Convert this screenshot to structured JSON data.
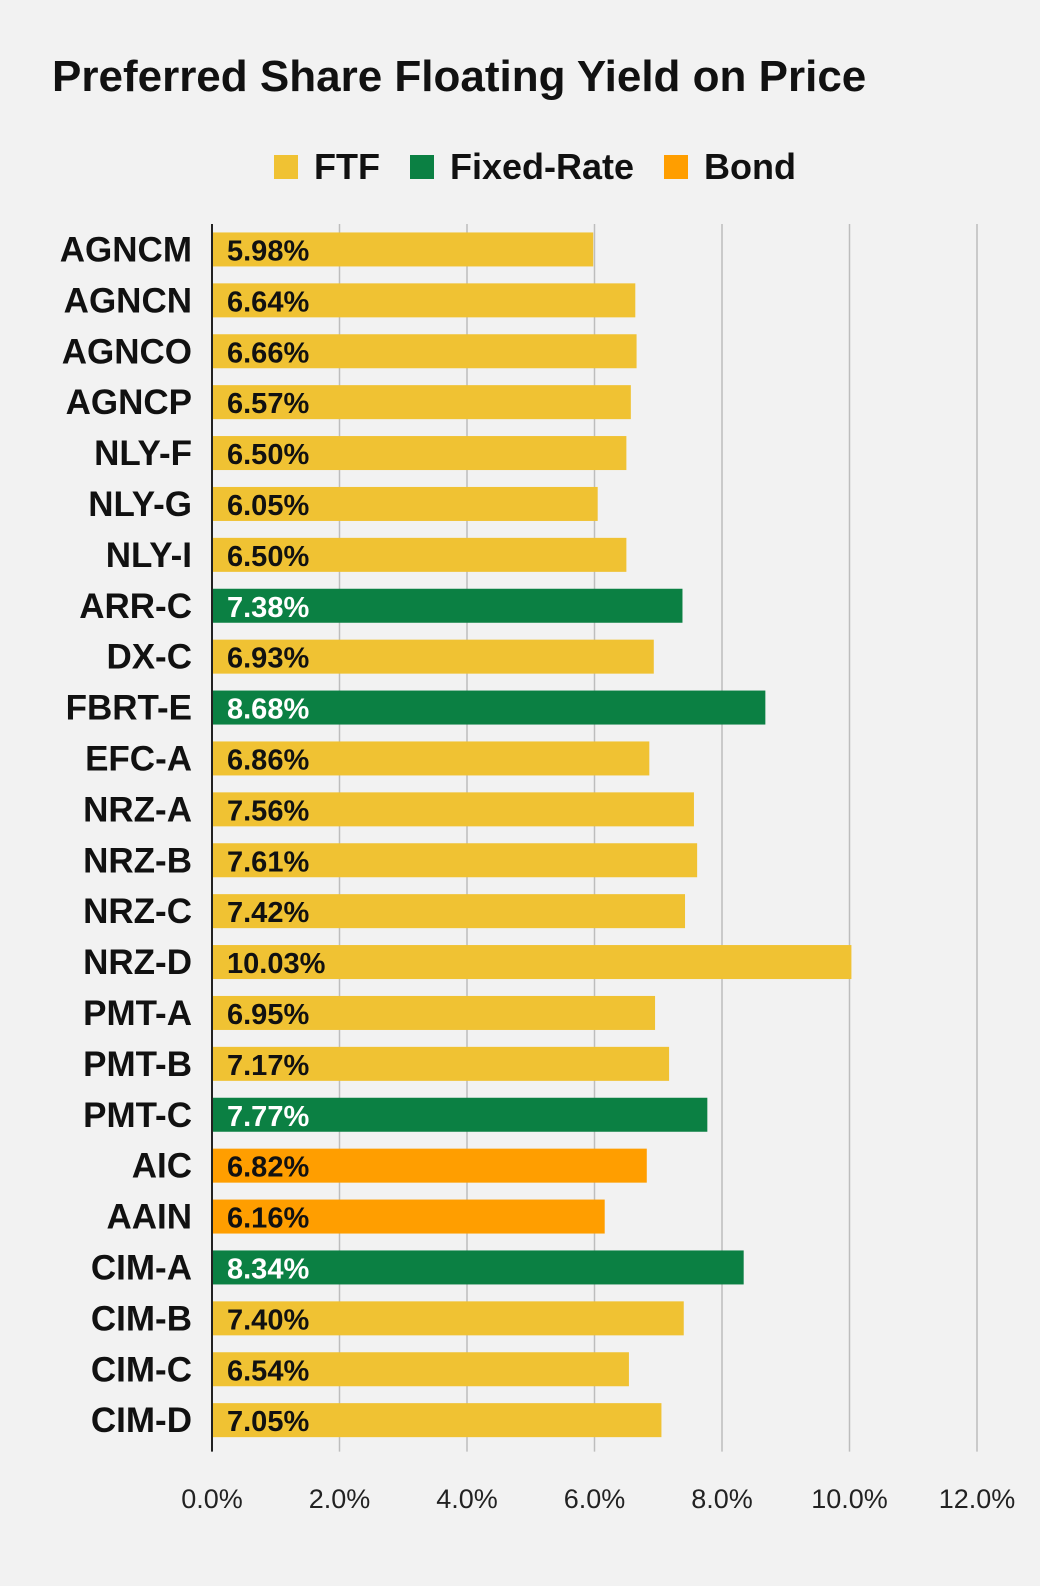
{
  "chart_data": {
    "type": "bar",
    "orientation": "horizontal",
    "title": "Preferred Share Floating Yield on Price",
    "legend": {
      "placement": "top-center",
      "entries": [
        {
          "key": "FTF",
          "label": "FTF",
          "color": "#f0c233"
        },
        {
          "key": "Fixed-Rate",
          "label": "Fixed-Rate",
          "color": "#0b8043"
        },
        {
          "key": "Bond",
          "label": "Bond",
          "color": "#ff9e00"
        }
      ]
    },
    "categories": [
      "AGNCM",
      "AGNCN",
      "AGNCO",
      "AGNCP",
      "NLY-F",
      "NLY-G",
      "NLY-I",
      "ARR-C",
      "DX-C",
      "FBRT-E",
      "EFC-A",
      "NRZ-A",
      "NRZ-B",
      "NRZ-C",
      "NRZ-D",
      "PMT-A",
      "PMT-B",
      "PMT-C",
      "AIC",
      "AAIN",
      "CIM-A",
      "CIM-B",
      "CIM-C",
      "CIM-D"
    ],
    "values": [
      5.98,
      6.64,
      6.66,
      6.57,
      6.5,
      6.05,
      6.5,
      7.38,
      6.93,
      8.68,
      6.86,
      7.56,
      7.61,
      7.42,
      10.03,
      6.95,
      7.17,
      7.77,
      6.82,
      6.16,
      8.34,
      7.4,
      6.54,
      7.05
    ],
    "value_labels": [
      "5.98%",
      "6.64%",
      "6.66%",
      "6.57%",
      "6.50%",
      "6.05%",
      "6.50%",
      "7.38%",
      "6.93%",
      "8.68%",
      "6.86%",
      "7.56%",
      "7.61%",
      "7.42%",
      "10.03%",
      "6.95%",
      "7.17%",
      "7.77%",
      "6.82%",
      "6.16%",
      "8.34%",
      "7.40%",
      "6.54%",
      "7.05%"
    ],
    "groups": [
      "FTF",
      "FTF",
      "FTF",
      "FTF",
      "FTF",
      "FTF",
      "FTF",
      "Fixed-Rate",
      "FTF",
      "Fixed-Rate",
      "FTF",
      "FTF",
      "FTF",
      "FTF",
      "FTF",
      "FTF",
      "FTF",
      "Fixed-Rate",
      "Bond",
      "Bond",
      "Fixed-Rate",
      "FTF",
      "FTF",
      "FTF"
    ],
    "xlim": [
      0,
      12
    ],
    "x_ticks": [
      0,
      2,
      4,
      6,
      8,
      10,
      12
    ],
    "x_tick_labels": [
      "0.0%",
      "2.0%",
      "4.0%",
      "6.0%",
      "8.0%",
      "10.0%",
      "12.0%"
    ],
    "grid": "vertical",
    "xlabel": "",
    "ylabel": ""
  }
}
